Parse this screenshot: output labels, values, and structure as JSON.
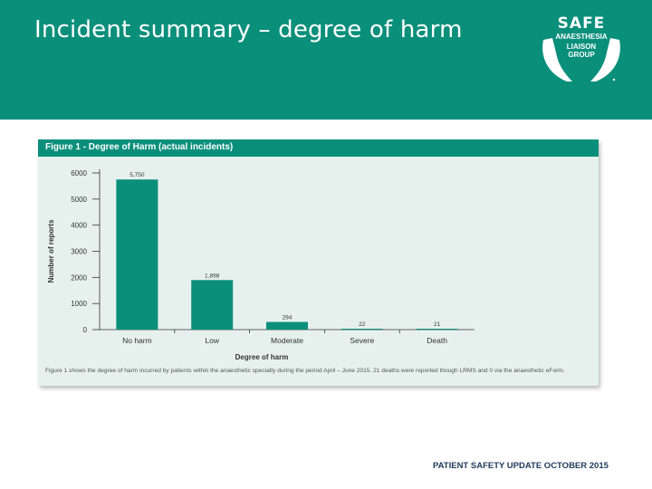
{
  "slide": {
    "title": "Incident summary – degree of harm",
    "footer": "PATIENT SAFETY UPDATE OCTOBER 2015"
  },
  "logo": {
    "line1": "SAFE",
    "line2": "ANAESTHESIA",
    "line3": "LIAISON",
    "line4": "GROUP"
  },
  "colors": {
    "brand": "#0a8f7b",
    "bar": "#0a8f7b",
    "panel": "#e6f1ee"
  },
  "chart_data": {
    "type": "bar",
    "title": "Figure 1 - Degree of Harm (actual incidents)",
    "xlabel": "Degree of harm",
    "ylabel": "Number of reports",
    "categories": [
      "No harm",
      "Low",
      "Moderate",
      "Severe",
      "Death"
    ],
    "values": [
      5750,
      1898,
      294,
      22,
      21
    ],
    "value_labels": [
      "5,750",
      "1,898",
      "294",
      "22",
      "21"
    ],
    "ylim": [
      0,
      6000
    ],
    "yticks": [
      0,
      1000,
      2000,
      3000,
      4000,
      5000,
      6000
    ],
    "ytick_labels": [
      "0",
      "1000",
      "2000",
      "3000",
      "4000",
      "5000",
      "6000"
    ],
    "grid": false,
    "legend": "none",
    "caption": "Figure 1 shows the degree of harm incurred by patients within the anaesthetic specialty during the period April – June 2015. 21 deaths were reported though LRMS and 0 via the anaesthetic eForm."
  }
}
